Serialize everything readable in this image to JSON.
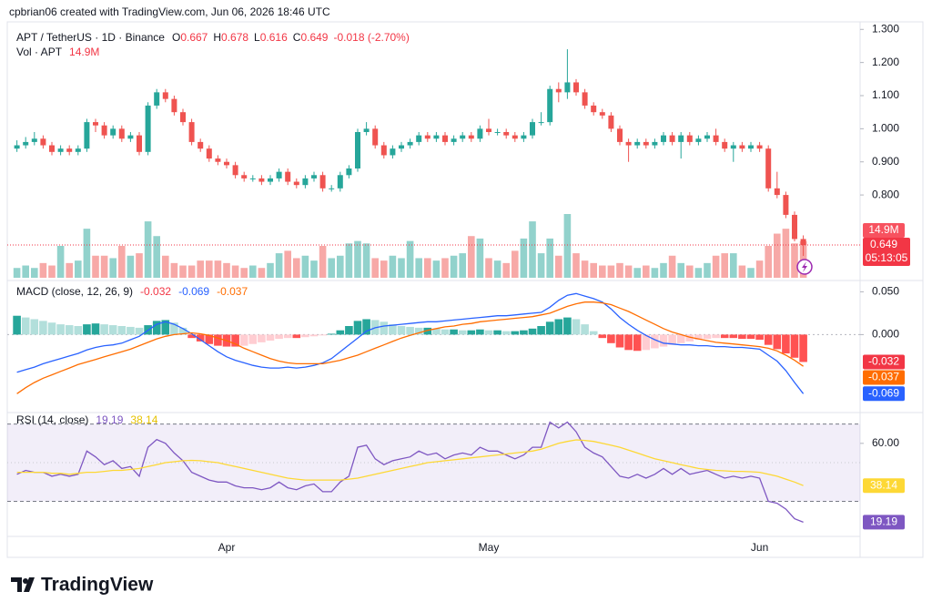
{
  "header": {
    "credit": "cpbrian06 created with TradingView.com, Jun 06, 2026 18:46 UTC"
  },
  "footer": {
    "brand": "TradingView"
  },
  "chart_data": [
    {
      "type": "candlestick",
      "title": "APT / TetherUS · 1D · Binance",
      "ohlc_letters": [
        "O",
        "H",
        "L",
        "C"
      ],
      "change_label": "-0.018 (-2.70%)",
      "countdown": "05:13:05",
      "up_color": "#26a69a",
      "down_color": "#ef5350",
      "categories": [
        null,
        null,
        null,
        null,
        null,
        null,
        null,
        null,
        null,
        null,
        null,
        null,
        null,
        null,
        null,
        null,
        null,
        null,
        null,
        null,
        null,
        null,
        null,
        null,
        "Apr",
        null,
        null,
        null,
        null,
        null,
        null,
        null,
        null,
        null,
        null,
        null,
        null,
        null,
        null,
        null,
        null,
        null,
        null,
        null,
        null,
        null,
        null,
        null,
        null,
        null,
        null,
        null,
        null,
        null,
        "May",
        null,
        null,
        null,
        null,
        null,
        null,
        null,
        null,
        null,
        null,
        null,
        null,
        null,
        null,
        null,
        null,
        null,
        null,
        null,
        null,
        null,
        null,
        null,
        null,
        null,
        null,
        null,
        null,
        null,
        null,
        "Jun",
        null,
        null,
        null,
        null,
        null
      ],
      "open": [
        0.94,
        0.95,
        0.96,
        0.97,
        0.95,
        0.93,
        0.94,
        0.93,
        0.94,
        1.02,
        1.01,
        0.98,
        1.0,
        0.97,
        0.98,
        0.93,
        1.07,
        1.11,
        1.09,
        1.05,
        1.02,
        0.96,
        0.94,
        0.91,
        0.9,
        0.89,
        0.86,
        0.85,
        0.85,
        0.84,
        0.85,
        0.87,
        0.84,
        0.83,
        0.85,
        0.86,
        0.82,
        0.82,
        0.86,
        0.88,
        0.99,
        1.0,
        0.95,
        0.92,
        0.94,
        0.95,
        0.96,
        0.98,
        0.97,
        0.98,
        0.96,
        0.97,
        0.98,
        0.97,
        1.0,
        0.99,
        0.99,
        0.98,
        0.97,
        0.98,
        1.02,
        1.02,
        1.12,
        1.11,
        1.14,
        1.11,
        1.07,
        1.05,
        1.04,
        1.0,
        0.96,
        0.95,
        0.96,
        0.95,
        0.96,
        0.98,
        0.96,
        0.98,
        0.96,
        0.97,
        0.98,
        0.96,
        0.94,
        0.95,
        0.94,
        0.95,
        0.94,
        0.82,
        0.8,
        0.74,
        0.667
      ],
      "high": [
        0.965,
        0.975,
        0.99,
        0.98,
        0.96,
        0.95,
        0.95,
        0.95,
        1.03,
        1.03,
        1.02,
        1.01,
        1.01,
        0.99,
        0.99,
        1.08,
        1.12,
        1.12,
        1.1,
        1.06,
        1.03,
        0.97,
        0.95,
        0.92,
        0.91,
        0.9,
        0.87,
        0.86,
        0.86,
        0.86,
        0.88,
        0.88,
        0.85,
        0.86,
        0.87,
        0.87,
        0.83,
        0.87,
        0.89,
        1.0,
        1.02,
        1.01,
        0.96,
        0.95,
        0.96,
        0.97,
        0.99,
        0.99,
        0.99,
        0.99,
        0.98,
        0.99,
        0.99,
        1.01,
        1.03,
        1.0,
        1.0,
        0.99,
        0.99,
        1.03,
        1.05,
        1.13,
        1.14,
        1.24,
        1.15,
        1.12,
        1.08,
        1.06,
        1.05,
        1.01,
        0.97,
        0.97,
        0.97,
        0.97,
        0.99,
        0.99,
        0.99,
        0.99,
        0.98,
        0.99,
        1.0,
        0.97,
        0.96,
        0.96,
        0.96,
        0.96,
        0.95,
        0.87,
        0.81,
        0.75,
        0.678
      ],
      "low": [
        0.93,
        0.94,
        0.95,
        0.94,
        0.92,
        0.92,
        0.92,
        0.92,
        0.93,
        0.99,
        0.97,
        0.97,
        0.96,
        0.96,
        0.92,
        0.92,
        1.06,
        1.08,
        1.04,
        1.01,
        0.95,
        0.93,
        0.9,
        0.89,
        0.88,
        0.85,
        0.84,
        0.84,
        0.83,
        0.83,
        0.84,
        0.83,
        0.82,
        0.82,
        0.84,
        0.81,
        0.81,
        0.81,
        0.85,
        0.87,
        0.98,
        0.94,
        0.91,
        0.91,
        0.93,
        0.94,
        0.95,
        0.96,
        0.96,
        0.95,
        0.95,
        0.96,
        0.96,
        0.96,
        0.98,
        0.98,
        0.97,
        0.96,
        0.96,
        0.97,
        1.01,
        1.01,
        1.08,
        1.09,
        1.1,
        1.06,
        1.04,
        1.03,
        0.99,
        0.95,
        0.9,
        0.94,
        0.94,
        0.94,
        0.95,
        0.95,
        0.91,
        0.95,
        0.95,
        0.96,
        0.95,
        0.93,
        0.9,
        0.93,
        0.93,
        0.93,
        0.81,
        0.79,
        0.73,
        0.66,
        0.616
      ],
      "close": [
        0.95,
        0.96,
        0.97,
        0.95,
        0.93,
        0.94,
        0.93,
        0.94,
        1.02,
        1.01,
        0.98,
        1.0,
        0.97,
        0.98,
        0.93,
        1.07,
        1.11,
        1.09,
        1.05,
        1.02,
        0.96,
        0.94,
        0.91,
        0.9,
        0.89,
        0.86,
        0.85,
        0.85,
        0.84,
        0.85,
        0.87,
        0.84,
        0.83,
        0.85,
        0.86,
        0.82,
        0.82,
        0.86,
        0.88,
        0.99,
        1.0,
        0.95,
        0.92,
        0.94,
        0.95,
        0.96,
        0.98,
        0.97,
        0.98,
        0.96,
        0.97,
        0.98,
        0.97,
        1.0,
        0.99,
        0.99,
        0.98,
        0.97,
        0.98,
        1.02,
        1.02,
        1.12,
        1.11,
        1.14,
        1.11,
        1.07,
        1.05,
        1.04,
        1.0,
        0.96,
        0.95,
        0.96,
        0.95,
        0.96,
        0.98,
        0.96,
        0.98,
        0.96,
        0.97,
        0.98,
        0.96,
        0.94,
        0.95,
        0.94,
        0.95,
        0.94,
        0.82,
        0.8,
        0.74,
        0.667,
        0.649
      ],
      "ylim": [
        0.55,
        1.32
      ],
      "yticks": [
        {
          "value": 1.3,
          "label": "1.300"
        },
        {
          "value": 1.2,
          "label": "1.200"
        },
        {
          "value": 1.1,
          "label": "1.100"
        },
        {
          "value": 1.0,
          "label": "1.000"
        },
        {
          "value": 0.9,
          "label": "0.900"
        },
        {
          "value": 0.8,
          "label": "0.800"
        }
      ],
      "volume": {
        "title": "Vol · APT",
        "values": [
          4,
          5,
          4,
          6,
          5,
          13,
          6,
          7,
          20,
          9,
          9,
          8,
          13,
          9,
          10,
          23,
          17,
          9,
          6,
          5,
          5,
          7,
          7,
          7,
          6,
          5,
          4,
          5,
          4,
          6,
          10,
          11,
          8,
          9,
          7,
          13,
          8,
          9,
          14,
          15,
          14,
          8,
          7,
          9,
          8,
          15,
          8,
          8,
          7,
          8,
          9,
          10,
          17,
          16,
          8,
          7,
          6,
          11,
          16,
          23,
          10,
          16,
          9,
          26,
          10,
          7,
          6,
          5,
          5,
          6,
          5,
          4,
          5,
          4,
          6,
          9,
          6,
          5,
          4,
          6,
          9,
          10,
          10,
          5,
          4,
          7,
          13,
          18,
          20,
          14,
          14.9
        ],
        "value_labels": [
          null,
          null,
          null,
          null,
          null,
          null,
          null,
          null,
          null,
          null,
          null,
          null,
          null,
          null,
          null,
          null,
          null,
          null,
          null,
          null,
          null,
          null,
          null,
          null,
          null,
          null,
          null,
          null,
          null,
          null,
          null,
          null,
          null,
          null,
          null,
          null,
          null,
          null,
          null,
          null,
          null,
          null,
          null,
          null,
          null,
          null,
          null,
          null,
          null,
          null,
          null,
          null,
          null,
          null,
          null,
          null,
          null,
          null,
          null,
          null,
          null,
          null,
          null,
          null,
          null,
          null,
          null,
          null,
          null,
          null,
          null,
          null,
          null,
          null,
          null,
          null,
          null,
          null,
          null,
          null,
          null,
          null,
          null,
          null,
          null,
          null,
          null,
          null,
          null,
          null,
          "14.9M"
        ]
      }
    },
    {
      "type": "macd",
      "title": "MACD (close, 12, 26, 9)",
      "ylim": [
        -0.09,
        0.06
      ],
      "yticks": [
        {
          "value": 0.05,
          "label": "0.050"
        },
        {
          "value": 0,
          "label": "0.000"
        }
      ],
      "hist_colors": [
        "#26a69a",
        "#b2dfdb",
        "#ffcdd2",
        "#ff5252"
      ],
      "histogram": {
        "values": [
          0.022,
          0.02,
          0.018,
          0.016,
          0.014,
          0.012,
          0.011,
          0.01,
          0.012,
          0.013,
          0.012,
          0.011,
          0.01,
          0.009,
          0.008,
          0.011,
          0.016,
          0.017,
          0.014,
          0.008,
          -0.004,
          -0.008,
          -0.011,
          -0.013,
          -0.014,
          -0.014,
          -0.013,
          -0.011,
          -0.009,
          -0.007,
          -0.005,
          -0.004,
          -0.004,
          -0.003,
          -0.002,
          -0.001,
          0.001,
          0.005,
          0.01,
          0.016,
          0.018,
          0.017,
          0.015,
          0.012,
          0.01,
          0.009,
          0.008,
          0.008,
          0.007,
          0.006,
          0.006,
          0.005,
          0.005,
          0.006,
          0.005,
          0.005,
          0.004,
          0.004,
          0.005,
          0.007,
          0.01,
          0.015,
          0.018,
          0.02,
          0.018,
          0.012,
          0.004,
          -0.004,
          -0.01,
          -0.015,
          -0.018,
          -0.019,
          -0.018,
          -0.016,
          -0.014,
          -0.012,
          -0.01,
          -0.008,
          -0.006,
          -0.005,
          -0.004,
          -0.004,
          -0.004,
          -0.005,
          -0.005,
          -0.006,
          -0.012,
          -0.017,
          -0.022,
          -0.027,
          -0.032
        ]
      },
      "series": [
        {
          "color": "#2962ff",
          "values": [
            -0.044,
            -0.041,
            -0.038,
            -0.034,
            -0.031,
            -0.028,
            -0.025,
            -0.022,
            -0.018,
            -0.015,
            -0.013,
            -0.012,
            -0.01,
            -0.006,
            -0.002,
            0.005,
            0.012,
            0.015,
            0.012,
            0.007,
            0.001,
            -0.006,
            -0.013,
            -0.02,
            -0.026,
            -0.03,
            -0.033,
            -0.036,
            -0.038,
            -0.039,
            -0.039,
            -0.038,
            -0.039,
            -0.038,
            -0.036,
            -0.033,
            -0.028,
            -0.02,
            -0.012,
            -0.004,
            0.004,
            0.008,
            0.01,
            0.011,
            0.012,
            0.013,
            0.014,
            0.015,
            0.015,
            0.016,
            0.017,
            0.018,
            0.019,
            0.02,
            0.021,
            0.022,
            0.022,
            0.023,
            0.024,
            0.025,
            0.026,
            0.032,
            0.04,
            0.046,
            0.048,
            0.045,
            0.042,
            0.038,
            0.03,
            0.02,
            0.012,
            0.005,
            -0.001,
            -0.006,
            -0.01,
            -0.011,
            -0.012,
            -0.012,
            -0.013,
            -0.013,
            -0.014,
            -0.014,
            -0.015,
            -0.015,
            -0.016,
            -0.017,
            -0.024,
            -0.031,
            -0.042,
            -0.056,
            -0.069
          ]
        },
        {
          "color": "#ff6d00",
          "values": [
            -0.069,
            -0.062,
            -0.056,
            -0.051,
            -0.047,
            -0.043,
            -0.039,
            -0.035,
            -0.032,
            -0.029,
            -0.026,
            -0.023,
            -0.02,
            -0.017,
            -0.013,
            -0.009,
            -0.005,
            -0.002,
            0,
            0.001,
            0.002,
            0.001,
            -0.001,
            -0.004,
            -0.007,
            -0.011,
            -0.016,
            -0.02,
            -0.024,
            -0.028,
            -0.031,
            -0.033,
            -0.034,
            -0.034,
            -0.034,
            -0.034,
            -0.032,
            -0.03,
            -0.027,
            -0.024,
            -0.02,
            -0.016,
            -0.012,
            -0.008,
            -0.004,
            -0.001,
            0.002,
            0.005,
            0.007,
            0.009,
            0.01,
            0.012,
            0.013,
            0.015,
            0.016,
            0.017,
            0.018,
            0.019,
            0.02,
            0.021,
            0.023,
            0.025,
            0.029,
            0.033,
            0.036,
            0.038,
            0.038,
            0.037,
            0.035,
            0.031,
            0.027,
            0.022,
            0.017,
            0.012,
            0.007,
            0.003,
            0,
            -0.003,
            -0.005,
            -0.007,
            -0.009,
            -0.01,
            -0.011,
            -0.012,
            -0.013,
            -0.014,
            -0.016,
            -0.019,
            -0.024,
            -0.03,
            -0.037
          ]
        }
      ]
    },
    {
      "type": "rsi",
      "title": "RSI (14, close)",
      "ylim": [
        1,
        75
      ],
      "yticks": [
        {
          "value": 60,
          "label": "60.00"
        }
      ],
      "bands": [
        70,
        50,
        30
      ],
      "band_color": "#7e57c2",
      "series": [
        {
          "color": "#7e57c2",
          "values": [
            44,
            46,
            45,
            45,
            43,
            44,
            43,
            44,
            56,
            53,
            49,
            51,
            47,
            48,
            43,
            58,
            62,
            60,
            55,
            51,
            45,
            43,
            41,
            40,
            40,
            38,
            37,
            37,
            36,
            37,
            40,
            37,
            36,
            38,
            39,
            35,
            35,
            40,
            43,
            58,
            59,
            52,
            49,
            51,
            52,
            53,
            56,
            54,
            55,
            52,
            54,
            55,
            54,
            58,
            56,
            56,
            54,
            52,
            54,
            58,
            58,
            71,
            68,
            71,
            66,
            58,
            55,
            53,
            48,
            43,
            42,
            44,
            42,
            44,
            47,
            44,
            47,
            44,
            45,
            46,
            44,
            42,
            43,
            42,
            43,
            42,
            30,
            29,
            26,
            21,
            19.19
          ]
        },
        {
          "color": "#fdd835",
          "values": [
            45,
            45,
            45,
            45,
            44.5,
            44.5,
            44,
            44.5,
            45,
            45,
            45.5,
            46,
            46,
            46.5,
            47,
            48,
            49,
            50,
            50.5,
            51,
            51.2,
            51,
            50.5,
            50,
            49,
            48,
            47,
            46,
            45,
            44,
            43,
            42,
            41.5,
            41,
            41,
            41,
            41,
            41,
            41.5,
            42,
            43,
            44,
            45,
            46,
            47,
            48,
            49,
            50,
            50.5,
            51,
            51.5,
            52,
            52.5,
            53,
            53.5,
            54,
            54.5,
            55,
            55.5,
            56,
            57,
            58.5,
            60,
            61,
            61.8,
            61.5,
            61,
            60,
            59,
            58,
            56.5,
            55,
            53.5,
            52,
            51,
            50,
            49,
            48,
            47,
            46.5,
            46,
            45.8,
            45.5,
            45.5,
            45.3,
            45,
            44,
            43,
            41.5,
            40,
            38.14
          ]
        }
      ]
    }
  ]
}
